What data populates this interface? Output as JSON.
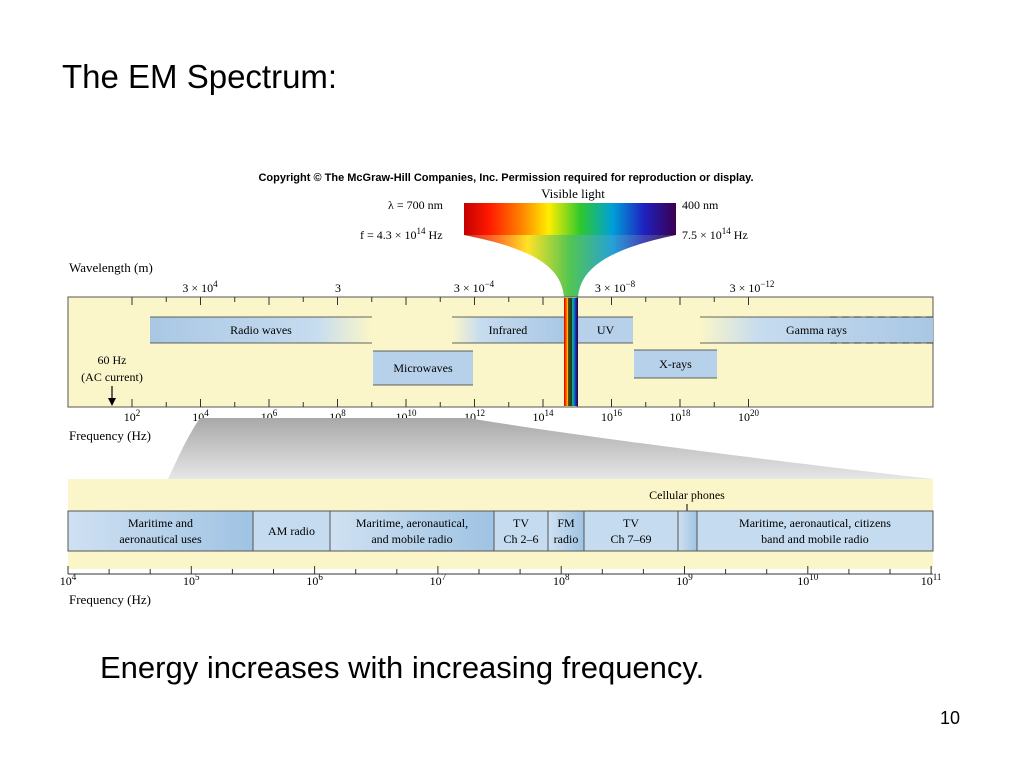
{
  "slide": {
    "title": "The EM Spectrum:",
    "caption": "Energy increases with increasing frequency.",
    "page_number": "10"
  },
  "figure": {
    "copyright": "Copyright © The McGraw-Hill Companies, Inc. Permission required for reproduction or display.",
    "visible_light": {
      "label": "Visible light",
      "left_wavelength": "λ = 700 nm",
      "left_frequency": {
        "prefix": "f = 4.3 × 10",
        "exp": "14",
        "unit": " Hz"
      },
      "right_wavelength": "400 nm",
      "right_frequency": {
        "prefix": "7.5 × 10",
        "exp": "14",
        "unit": " Hz"
      }
    },
    "wavelength_axis": {
      "title": "Wavelength (m)",
      "ticks": [
        {
          "base": "3 × 10",
          "exp": "4"
        },
        {
          "base": "3",
          "exp": ""
        },
        {
          "base": "3 × 10",
          "exp": "−4"
        },
        {
          "base": "3 × 10",
          "exp": "−8"
        },
        {
          "base": "3 × 10",
          "exp": "−12"
        }
      ]
    },
    "bands": [
      "Radio waves",
      "Microwaves",
      "Infrared",
      "UV",
      "X-rays",
      "Gamma rays"
    ],
    "ac_note": {
      "line1": "60 Hz",
      "line2": "(AC current)"
    },
    "frequency_axis": {
      "title": "Frequency (Hz)",
      "ticks": [
        {
          "base": "10",
          "exp": "2"
        },
        {
          "base": "10",
          "exp": "4"
        },
        {
          "base": "10",
          "exp": "6"
        },
        {
          "base": "10",
          "exp": "8"
        },
        {
          "base": "10",
          "exp": "10"
        },
        {
          "base": "10",
          "exp": "12"
        },
        {
          "base": "10",
          "exp": "14"
        },
        {
          "base": "10",
          "exp": "16"
        },
        {
          "base": "10",
          "exp": "18"
        },
        {
          "base": "10",
          "exp": "20"
        }
      ]
    },
    "radio_detail": {
      "cellular_label": "Cellular phones",
      "segments": [
        {
          "line1": "Maritime and",
          "line2": "aeronautical uses"
        },
        {
          "line1": "AM radio",
          "line2": ""
        },
        {
          "line1": "Maritime, aeronautical,",
          "line2": "and mobile radio"
        },
        {
          "line1": "TV",
          "line2": "Ch 2–6"
        },
        {
          "line1": "FM",
          "line2": "radio"
        },
        {
          "line1": "TV",
          "line2": "Ch 7–69"
        },
        {
          "line1": "",
          "line2": ""
        },
        {
          "line1": "Maritime, aeronautical, citizens",
          "line2": "band and mobile radio"
        }
      ],
      "frequency_title": "Frequency (Hz)",
      "ticks": [
        {
          "base": "10",
          "exp": "4"
        },
        {
          "base": "10",
          "exp": "5"
        },
        {
          "base": "10",
          "exp": "6"
        },
        {
          "base": "10",
          "exp": "7"
        },
        {
          "base": "10",
          "exp": "8"
        },
        {
          "base": "10",
          "exp": "9"
        },
        {
          "base": "10",
          "exp": "10"
        },
        {
          "base": "10",
          "exp": "11"
        }
      ]
    }
  }
}
